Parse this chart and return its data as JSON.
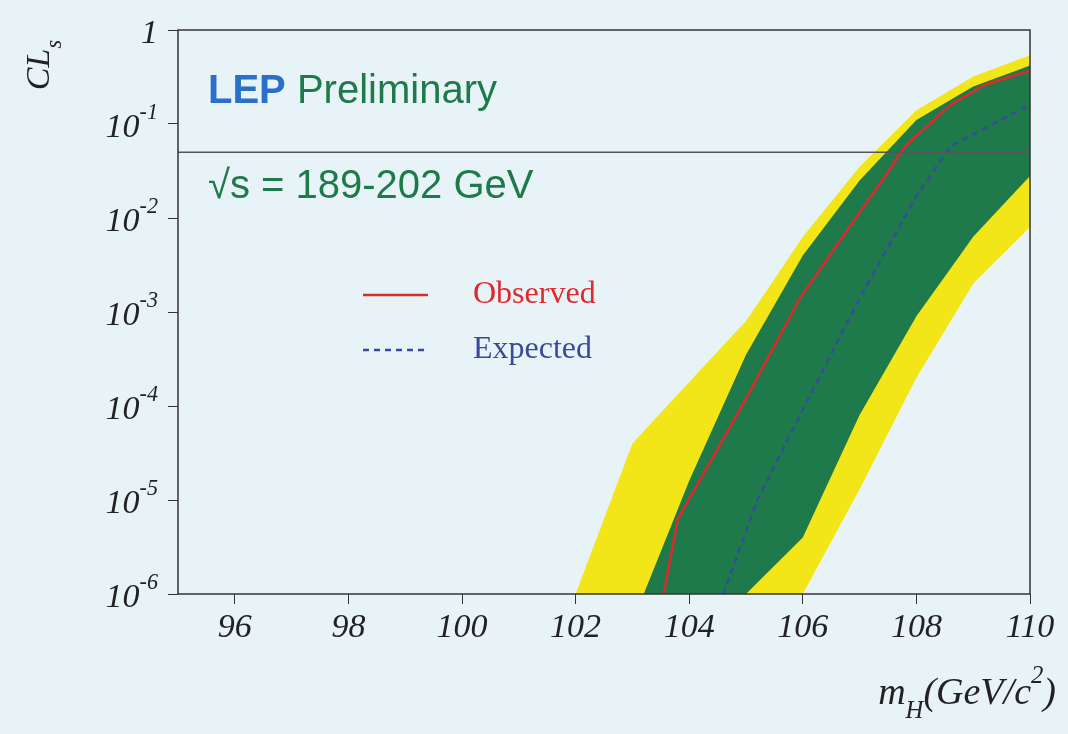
{
  "chart_data": {
    "type": "line",
    "ylabel": "CL$_{s}$",
    "xlabel": "m$_{H}$(GeV/c$^{2}$)",
    "annotations": [
      "LEP Preliminary",
      "√s = 189-202 GeV"
    ],
    "log": "y",
    "legend": "left",
    "grid": false,
    "xlim": [
      95,
      110
    ],
    "xticks": [
      96,
      98,
      100,
      102,
      104,
      106,
      108,
      110
    ],
    "ylim": [
      1e-06,
      1
    ],
    "yticks": [
      {
        "value": 1e-06,
        "label": "10$^{-6}$"
      },
      {
        "value": 1e-05,
        "label": "10$^{-5}$"
      },
      {
        "value": 0.0001,
        "label": "10$^{-4}$"
      },
      {
        "value": 0.001,
        "label": "10$^{-3}$"
      },
      {
        "value": 0.01,
        "label": "10$^{-2}$"
      },
      {
        "value": 0.1,
        "label": "10$^{-1}$"
      },
      1
    ],
    "ref_lines": [
      {
        "axis": "y",
        "value": 0.05,
        "color": "#555555"
      }
    ],
    "series": [
      {
        "type": "line",
        "color": "#f2e619",
        "x": [
          102,
          103,
          104,
          105,
          106,
          107,
          108,
          109,
          110
        ],
        "values": [
          null,
          null,
          null,
          null,
          null,
          null,
          null,
          null,
          null
        ],
        "lower": [
          1e-06,
          1e-06,
          1e-06,
          1e-06,
          1e-06,
          1.3e-05,
          0.0002,
          0.002,
          0.008
        ],
        "upper": [
          1e-06,
          4e-05,
          0.00018,
          0.0008,
          0.0063,
          0.035,
          0.14,
          0.32,
          0.54
        ]
      },
      {
        "type": "line",
        "color": "#1e7a4a",
        "x": [
          103.2,
          104,
          105,
          106,
          107,
          108,
          109,
          110
        ],
        "values": [
          null,
          null,
          null,
          null,
          null,
          null,
          null,
          null
        ],
        "lower": [
          1e-06,
          1e-06,
          1e-06,
          4e-06,
          8e-05,
          0.0009,
          0.0063,
          0.028
        ],
        "upper": [
          1e-06,
          1.6e-05,
          0.00035,
          0.004,
          0.025,
          0.11,
          0.25,
          0.42
        ]
      },
      {
        "type": "line",
        "name": "Observed",
        "color": "#e0282d",
        "line_style": "solid",
        "x": [
          103.55,
          103.8,
          104.5,
          105.0,
          105.95,
          106.7,
          107.45,
          107.8,
          108.6,
          109.2,
          110
        ],
        "values": [
          1e-06,
          6.3e-06,
          3.5e-05,
          0.00012,
          0.0014,
          0.0063,
          0.028,
          0.058,
          0.16,
          0.26,
          0.37
        ]
      },
      {
        "type": "line",
        "name": "Expected",
        "color": "#3a4a9a",
        "line_style": "dashed",
        "x": [
          104.6,
          105.2,
          106.1,
          107.0,
          108.0,
          108.6,
          110
        ],
        "values": [
          1e-06,
          1e-05,
          0.00012,
          0.0014,
          0.017,
          0.058,
          0.16
        ]
      }
    ]
  }
}
